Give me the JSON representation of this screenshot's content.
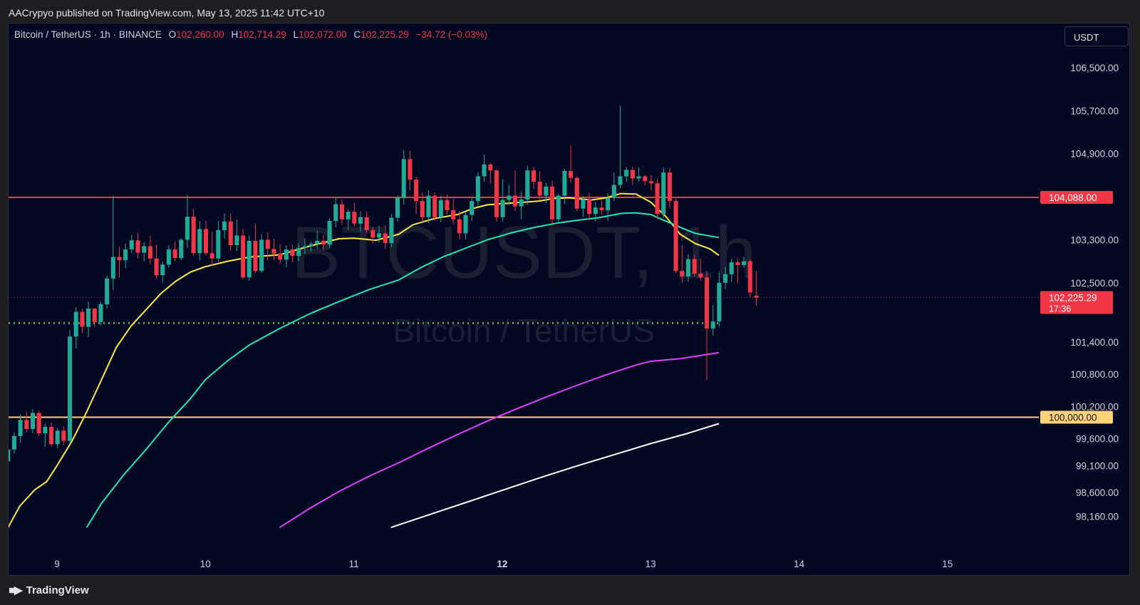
{
  "header": {
    "published_text": "AACrypyo published on TradingView.com, May 13, 2025 11:42 UTC+10"
  },
  "legend": {
    "symbol": "Bitcoin / TetherUS · 1h · BINANCE",
    "open_label": "O",
    "open": "102,260.00",
    "high_label": "H",
    "high": "102,714.29",
    "low_label": "L",
    "low": "102,072.00",
    "close_label": "C",
    "close": "102,225.29",
    "change": "−34.72 (−0.03%)"
  },
  "currency_button": "USDT",
  "watermark": {
    "ticker": "BTCUSDT, 1h",
    "name": "Bitcoin / TetherUS"
  },
  "footer": {
    "brand": "TradingView"
  },
  "colors": {
    "up": "#22ab94",
    "down": "#f23645",
    "ema_yellow": "#ffeb3b",
    "ema_green": "#1de9b6",
    "ema_magenta": "#e040fb",
    "ema_white": "#ffffff",
    "resistance": "#f23645",
    "support": "#ffd27a",
    "dotted": "#4caf50",
    "background": "#020722"
  },
  "chart_data": {
    "type": "candlestick",
    "timeframe": "1h",
    "x_axis": {
      "tick_labels": [
        "9",
        "10",
        "11",
        "12",
        "13",
        "14",
        "15"
      ],
      "bold_labels": [
        "12"
      ]
    },
    "y_axis": {
      "tick_labels": [
        "106,500.00",
        "105,700.00",
        "104,900.00",
        "103,300.00",
        "102,500.00",
        "101,400.00",
        "100,800.00",
        "100,200.00",
        "99,600.00",
        "99,100.00",
        "98,600.00",
        "98,160.00"
      ],
      "ylim": [
        97800,
        106900
      ]
    },
    "price_labels": [
      {
        "text": "104,088.00",
        "value": 104088,
        "color": "#f23645"
      },
      {
        "text": "102,225.29",
        "sub": "17:36",
        "value": 102225.29,
        "color": "#f23645"
      },
      {
        "text": "100,000.00",
        "value": 100000,
        "color": "#ffd27a"
      }
    ],
    "horizontal_lines": [
      {
        "value": 104088,
        "style": "solid",
        "color": "#f23645"
      },
      {
        "value": 100000,
        "style": "solid",
        "color": "#ffd27a"
      },
      {
        "value": 101750,
        "style": "dotted",
        "color": "#4caf50"
      },
      {
        "value": 102225.29,
        "style": "dotted-thin",
        "color": "#f23645"
      }
    ],
    "candles_start_day": 8.67,
    "candle_hours": 1,
    "candles": [
      [
        99180,
        99430,
        99090,
        99400
      ],
      [
        99400,
        99720,
        99320,
        99650
      ],
      [
        99650,
        100050,
        99520,
        99950
      ],
      [
        99950,
        100100,
        99720,
        99780
      ],
      [
        99780,
        100150,
        99700,
        100080
      ],
      [
        100080,
        100120,
        99650,
        99700
      ],
      [
        99700,
        99880,
        99450,
        99820
      ],
      [
        99820,
        99900,
        99450,
        99500
      ],
      [
        99500,
        99800,
        99420,
        99750
      ],
      [
        99750,
        99830,
        99480,
        99560
      ],
      [
        99560,
        101620,
        99500,
        101500
      ],
      [
        101500,
        102050,
        101280,
        101960
      ],
      [
        101960,
        102020,
        101560,
        101680
      ],
      [
        101680,
        102150,
        101490,
        102020
      ],
      [
        102020,
        102020,
        101680,
        101770
      ],
      [
        101770,
        102150,
        101700,
        102100
      ],
      [
        102100,
        102630,
        102020,
        102580
      ],
      [
        102580,
        104120,
        102370,
        102980
      ],
      [
        102980,
        103170,
        102600,
        102920
      ],
      [
        102920,
        103230,
        102770,
        103120
      ],
      [
        103120,
        103390,
        103050,
        103290
      ],
      [
        103290,
        103430,
        102950,
        103060
      ],
      [
        103060,
        103260,
        102900,
        103180
      ],
      [
        103180,
        103370,
        102850,
        102950
      ],
      [
        102950,
        103210,
        102580,
        102640
      ],
      [
        102640,
        102900,
        102500,
        102840
      ],
      [
        102840,
        103200,
        102780,
        103120
      ],
      [
        103120,
        103270,
        102900,
        102960
      ],
      [
        102960,
        103330,
        102920,
        103300
      ],
      [
        103300,
        104130,
        103150,
        103730
      ],
      [
        103730,
        103880,
        103000,
        103050
      ],
      [
        103050,
        103650,
        102920,
        103500
      ],
      [
        103500,
        103660,
        103010,
        103050
      ],
      [
        103050,
        103450,
        102820,
        102950
      ],
      [
        102950,
        103650,
        102890,
        103480
      ],
      [
        103480,
        103790,
        103330,
        103640
      ],
      [
        103640,
        103790,
        103100,
        103200
      ],
      [
        103200,
        103670,
        103090,
        103380
      ],
      [
        103380,
        103500,
        102570,
        102600
      ],
      [
        102600,
        103380,
        102540,
        103280
      ],
      [
        103280,
        103600,
        102680,
        102720
      ],
      [
        102720,
        103400,
        102690,
        103300
      ],
      [
        103300,
        103440,
        102920,
        103130
      ],
      [
        103130,
        103320,
        102920,
        103040
      ],
      [
        103040,
        103220,
        102850,
        102930
      ],
      [
        102930,
        103200,
        102790,
        103120
      ],
      [
        103120,
        103210,
        102880,
        103000
      ],
      [
        103000,
        103230,
        102900,
        103150
      ],
      [
        103150,
        103330,
        103030,
        103180
      ],
      [
        103180,
        103260,
        103080,
        103220
      ],
      [
        103220,
        103470,
        103130,
        103280
      ],
      [
        103280,
        103390,
        103120,
        103210
      ],
      [
        103210,
        103700,
        103140,
        103650
      ],
      [
        103650,
        104100,
        103530,
        103960
      ],
      [
        103960,
        104050,
        103580,
        103680
      ],
      [
        103680,
        103860,
        103490,
        103820
      ],
      [
        103820,
        103990,
        103550,
        103600
      ],
      [
        103600,
        103830,
        103450,
        103720
      ],
      [
        103720,
        103820,
        103430,
        103480
      ],
      [
        103480,
        103540,
        103230,
        103340
      ],
      [
        103340,
        103560,
        103240,
        103420
      ],
      [
        103420,
        103560,
        103130,
        103240
      ],
      [
        103240,
        103780,
        103160,
        103710
      ],
      [
        103710,
        104120,
        103640,
        104080
      ],
      [
        104080,
        104970,
        103960,
        104800
      ],
      [
        104800,
        104950,
        104220,
        104420
      ],
      [
        104420,
        104480,
        103780,
        104020
      ],
      [
        104020,
        104180,
        103620,
        103720
      ],
      [
        103720,
        104220,
        103610,
        104120
      ],
      [
        104120,
        104180,
        103650,
        103720
      ],
      [
        103720,
        104120,
        103620,
        104040
      ],
      [
        104040,
        104140,
        103770,
        103850
      ],
      [
        103850,
        104060,
        103580,
        103680
      ],
      [
        103680,
        103840,
        103310,
        103420
      ],
      [
        103420,
        103810,
        103310,
        103760
      ],
      [
        103760,
        104100,
        103650,
        104020
      ],
      [
        104020,
        104550,
        103920,
        104480
      ],
      [
        104480,
        104880,
        104380,
        104700
      ],
      [
        104700,
        104730,
        104340,
        104590
      ],
      [
        104590,
        104610,
        103640,
        103720
      ],
      [
        103720,
        104430,
        103640,
        104040
      ],
      [
        104040,
        104330,
        103950,
        104120
      ],
      [
        104120,
        104590,
        103830,
        103920
      ],
      [
        103920,
        104190,
        103680,
        104050
      ],
      [
        104050,
        104680,
        103950,
        104590
      ],
      [
        104590,
        104650,
        104250,
        104380
      ],
      [
        104380,
        104580,
        104030,
        104120
      ],
      [
        104120,
        104360,
        103980,
        104290
      ],
      [
        104290,
        104400,
        103600,
        103680
      ],
      [
        103680,
        104160,
        103610,
        104120
      ],
      [
        104120,
        104620,
        103970,
        104580
      ],
      [
        104580,
        105050,
        104360,
        104450
      ],
      [
        104450,
        104480,
        103830,
        103880
      ],
      [
        103880,
        104110,
        103730,
        104050
      ],
      [
        104050,
        104180,
        103660,
        103780
      ],
      [
        103780,
        104000,
        103650,
        103900
      ],
      [
        103900,
        104030,
        103770,
        103850
      ],
      [
        103850,
        104170,
        103650,
        104080
      ],
      [
        104080,
        104550,
        104020,
        104320
      ],
      [
        104320,
        105800,
        104250,
        104480
      ],
      [
        104480,
        104650,
        104380,
        104600
      ],
      [
        104600,
        104660,
        104320,
        104440
      ],
      [
        104440,
        104650,
        104380,
        104480
      ],
      [
        104480,
        104510,
        104310,
        104390
      ],
      [
        104390,
        104500,
        104220,
        104350
      ],
      [
        104350,
        104440,
        103680,
        103780
      ],
      [
        103780,
        104640,
        103710,
        104550
      ],
      [
        104550,
        104640,
        103890,
        104020
      ],
      [
        104020,
        104070,
        102680,
        102720
      ],
      [
        102720,
        103200,
        102500,
        102620
      ],
      [
        102620,
        103030,
        102520,
        102940
      ],
      [
        102940,
        103020,
        102620,
        102670
      ],
      [
        102670,
        102950,
        102540,
        102600
      ],
      [
        102600,
        102720,
        100690,
        101650
      ],
      [
        101650,
        102090,
        101520,
        101780
      ],
      [
        101780,
        102700,
        101680,
        102500
      ],
      [
        102500,
        102800,
        102380,
        102660
      ],
      [
        102660,
        102950,
        102510,
        102880
      ],
      [
        102880,
        102950,
        102490,
        102830
      ],
      [
        102830,
        102980,
        102780,
        102900
      ],
      [
        102900,
        102940,
        102240,
        102320
      ],
      [
        102260,
        102714.29,
        102072,
        102225.29
      ]
    ],
    "series": [
      {
        "name": "",
        "color": "#ffeb3b",
        "points": [
          [
            8.67,
            97950
          ],
          [
            8.75,
            98350
          ],
          [
            8.85,
            98650
          ],
          [
            8.93,
            98800
          ],
          [
            9.0,
            99100
          ],
          [
            9.1,
            99550
          ],
          [
            9.2,
            100100
          ],
          [
            9.3,
            100700
          ],
          [
            9.4,
            101300
          ],
          [
            9.5,
            101700
          ],
          [
            9.6,
            102000
          ],
          [
            9.7,
            102300
          ],
          [
            9.8,
            102530
          ],
          [
            9.9,
            102700
          ],
          [
            10.0,
            102800
          ],
          [
            10.15,
            102900
          ],
          [
            10.3,
            102980
          ],
          [
            10.5,
            103020
          ],
          [
            10.7,
            103180
          ],
          [
            10.9,
            103320
          ],
          [
            11.0,
            103330
          ],
          [
            11.15,
            103290
          ],
          [
            11.3,
            103400
          ],
          [
            11.4,
            103580
          ],
          [
            11.55,
            103700
          ],
          [
            11.7,
            103770
          ],
          [
            11.8,
            103880
          ],
          [
            11.9,
            103950
          ],
          [
            12.0,
            103970
          ],
          [
            12.1,
            103990
          ],
          [
            12.25,
            104020
          ],
          [
            12.35,
            104070
          ],
          [
            12.45,
            104080
          ],
          [
            12.6,
            104040
          ],
          [
            12.7,
            104080
          ],
          [
            12.8,
            104160
          ],
          [
            12.9,
            104150
          ],
          [
            13.0,
            104000
          ],
          [
            13.1,
            103740
          ],
          [
            13.2,
            103400
          ],
          [
            13.3,
            103230
          ],
          [
            13.4,
            103130
          ],
          [
            13.46,
            103010
          ]
        ]
      },
      {
        "name": "",
        "color": "#1de9b6",
        "points": [
          [
            9.2,
            97950
          ],
          [
            9.3,
            98400
          ],
          [
            9.45,
            98930
          ],
          [
            9.6,
            99400
          ],
          [
            9.75,
            99900
          ],
          [
            9.9,
            100350
          ],
          [
            10.0,
            100700
          ],
          [
            10.15,
            101050
          ],
          [
            10.3,
            101350
          ],
          [
            10.5,
            101650
          ],
          [
            10.7,
            101920
          ],
          [
            10.9,
            102150
          ],
          [
            11.1,
            102370
          ],
          [
            11.3,
            102550
          ],
          [
            11.45,
            102780
          ],
          [
            11.6,
            102980
          ],
          [
            11.75,
            103140
          ],
          [
            11.9,
            103300
          ],
          [
            12.05,
            103420
          ],
          [
            12.2,
            103520
          ],
          [
            12.35,
            103600
          ],
          [
            12.5,
            103660
          ],
          [
            12.65,
            103710
          ],
          [
            12.8,
            103790
          ],
          [
            12.9,
            103800
          ],
          [
            13.0,
            103770
          ],
          [
            13.1,
            103650
          ],
          [
            13.2,
            103530
          ],
          [
            13.3,
            103420
          ],
          [
            13.4,
            103370
          ],
          [
            13.46,
            103340
          ]
        ]
      },
      {
        "name": "",
        "color": "#e040fb",
        "points": [
          [
            10.5,
            97950
          ],
          [
            10.7,
            98300
          ],
          [
            10.9,
            98620
          ],
          [
            11.1,
            98900
          ],
          [
            11.3,
            99150
          ],
          [
            11.5,
            99420
          ],
          [
            11.7,
            99680
          ],
          [
            11.9,
            99930
          ],
          [
            12.1,
            100160
          ],
          [
            12.3,
            100380
          ],
          [
            12.5,
            100590
          ],
          [
            12.7,
            100790
          ],
          [
            12.9,
            100970
          ],
          [
            13.0,
            101040
          ],
          [
            13.2,
            101090
          ],
          [
            13.46,
            101200
          ]
        ]
      },
      {
        "name": "",
        "color": "#ffffff",
        "points": [
          [
            11.25,
            97950
          ],
          [
            11.5,
            98180
          ],
          [
            11.75,
            98410
          ],
          [
            12.0,
            98640
          ],
          [
            12.25,
            98870
          ],
          [
            12.5,
            99090
          ],
          [
            12.75,
            99300
          ],
          [
            13.0,
            99510
          ],
          [
            13.25,
            99700
          ],
          [
            13.46,
            99880
          ]
        ]
      }
    ]
  }
}
